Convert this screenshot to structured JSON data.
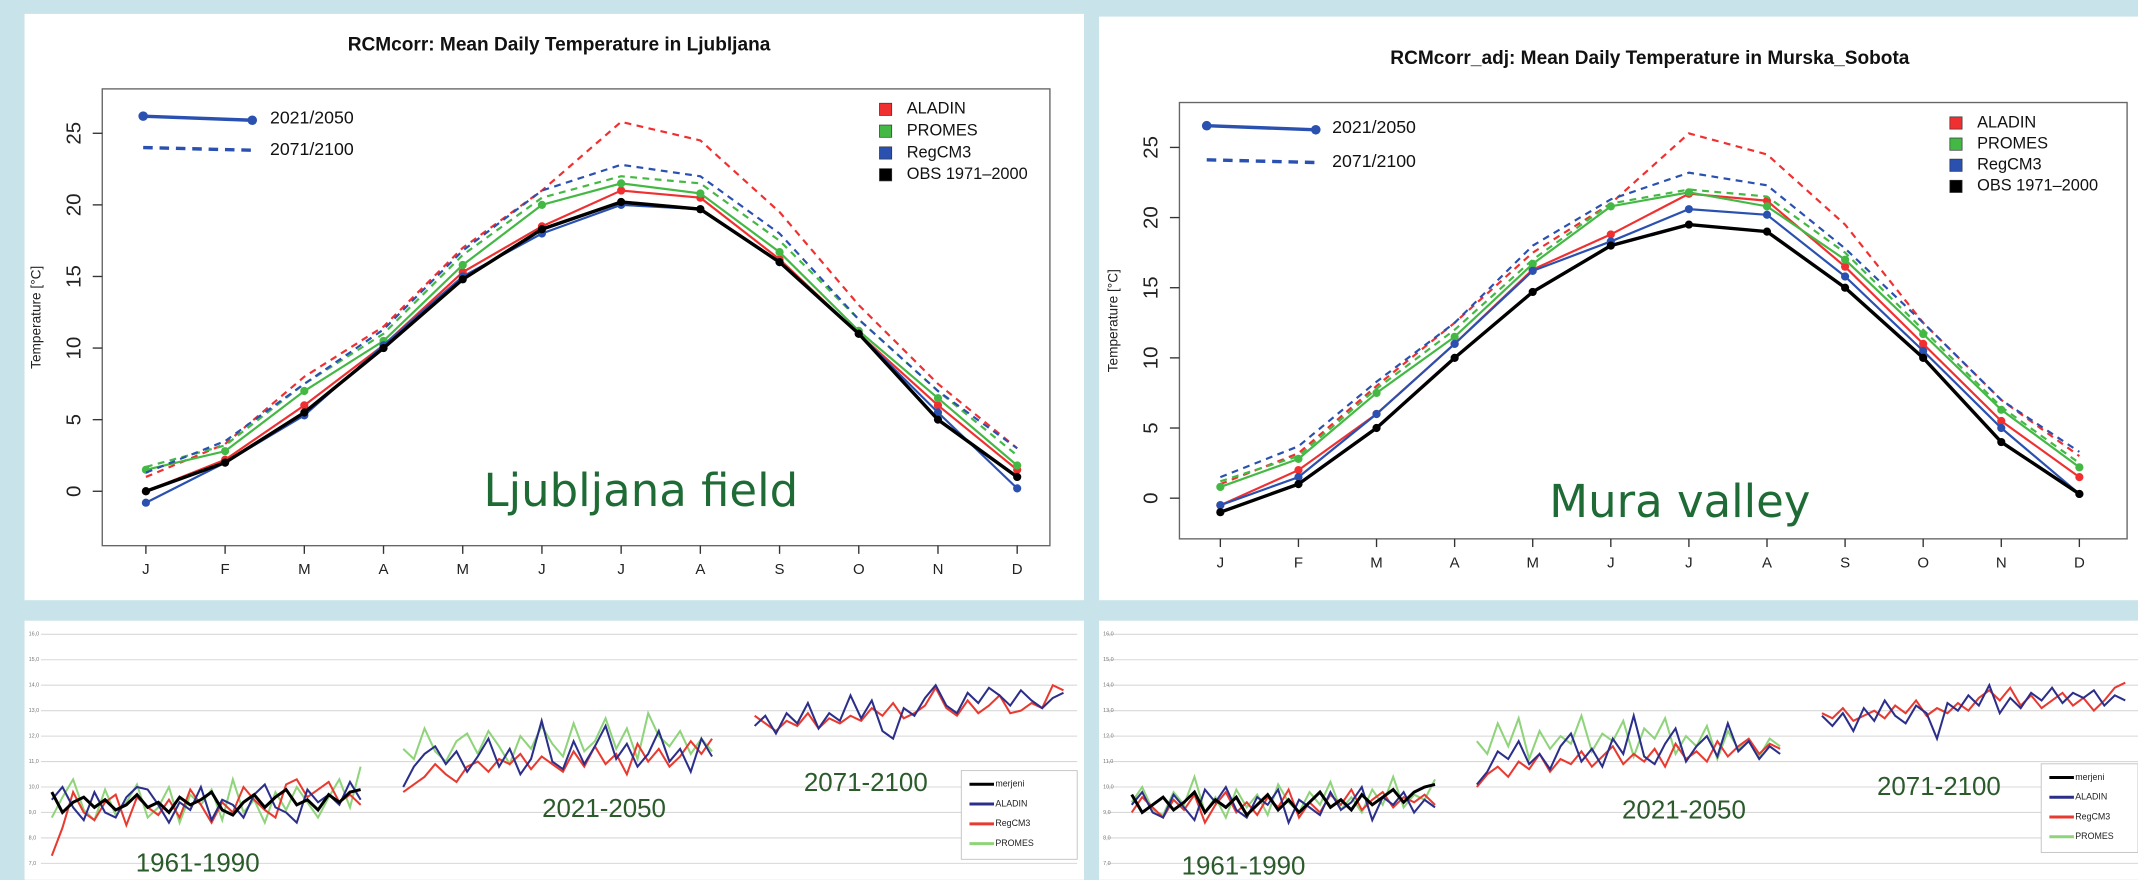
{
  "chart_data": [
    {
      "type": "line",
      "title": "RCMcorr: Mean Daily Temperature in Ljubljana",
      "ylabel": "Temperature [°C]",
      "annotation": "Ljubljana field",
      "categories": [
        "J",
        "F",
        "M",
        "A",
        "M",
        "J",
        "J",
        "A",
        "S",
        "O",
        "N",
        "D"
      ],
      "ylim": [
        -3.8,
        28.1
      ],
      "yticks": [
        0,
        5,
        10,
        15,
        20,
        25
      ],
      "periods": [
        "2021/2050",
        "2071/2100"
      ],
      "series": [
        {
          "name": "ALADIN",
          "color": "#f03030",
          "values": [
            [
              0.0,
              2.2,
              6.0,
              10.2,
              15.3,
              18.5,
              21.0,
              20.5,
              16.2,
              11.0,
              6.0,
              1.5
            ],
            [
              1.0,
              3.3,
              8.0,
              11.5,
              17.0,
              21.0,
              25.8,
              24.5,
              19.5,
              13.0,
              7.5,
              3.0
            ]
          ]
        },
        {
          "name": "PROMES",
          "color": "#44b844",
          "values": [
            [
              1.5,
              2.8,
              7.0,
              10.5,
              15.8,
              20.0,
              21.5,
              20.8,
              16.7,
              11.2,
              6.5,
              1.8
            ],
            [
              1.7,
              3.2,
              7.5,
              11.0,
              16.5,
              20.5,
              22.0,
              21.5,
              17.5,
              12.0,
              7.0,
              2.5
            ]
          ]
        },
        {
          "name": "RegCM3",
          "color": "#2a50b0",
          "values": [
            [
              -0.8,
              2.0,
              5.3,
              10.2,
              15.0,
              18.0,
              20.0,
              19.7,
              16.0,
              11.0,
              5.5,
              0.2
            ],
            [
              1.3,
              3.5,
              7.5,
              11.3,
              16.8,
              21.0,
              22.8,
              22.0,
              18.0,
              12.0,
              7.0,
              3.0
            ]
          ]
        },
        {
          "name": "OBS 1971–2000",
          "color": "#000000",
          "values": [
            [
              0.0,
              2.0,
              5.5,
              10.0,
              14.8,
              18.3,
              20.2,
              19.7,
              16.0,
              11.0,
              5.0,
              1.0
            ]
          ]
        }
      ]
    },
    {
      "type": "line",
      "title": "RCMcorr_adj: Mean Daily Temperature in Murska_Sobota",
      "ylabel": "Temperature [°C]",
      "annotation": "Mura valley",
      "categories": [
        "J",
        "F",
        "M",
        "A",
        "M",
        "J",
        "J",
        "A",
        "S",
        "O",
        "N",
        "D"
      ],
      "ylim": [
        -2.9,
        28.2
      ],
      "yticks": [
        0,
        5,
        10,
        15,
        20,
        25
      ],
      "periods": [
        "2021/2050",
        "2071/2100"
      ],
      "series": [
        {
          "name": "ALADIN",
          "color": "#f03030",
          "values": [
            [
              -0.5,
              2.0,
              6.0,
              11.0,
              16.3,
              18.8,
              21.7,
              21.2,
              16.5,
              11.0,
              5.5,
              1.5
            ],
            [
              1.0,
              3.2,
              8.0,
              12.5,
              17.5,
              21.0,
              26.0,
              24.5,
              19.5,
              12.5,
              7.0,
              3.0
            ]
          ]
        },
        {
          "name": "PROMES",
          "color": "#44b844",
          "values": [
            [
              0.8,
              2.8,
              7.5,
              11.5,
              16.7,
              20.8,
              21.8,
              20.8,
              17.0,
              11.7,
              6.3,
              2.2
            ],
            [
              1.2,
              3.0,
              7.8,
              12.0,
              17.0,
              21.0,
              22.0,
              21.5,
              17.5,
              12.0,
              6.5,
              2.5
            ]
          ]
        },
        {
          "name": "RegCM3",
          "color": "#2a50b0",
          "values": [
            [
              -0.5,
              1.5,
              6.0,
              11.0,
              16.2,
              18.3,
              20.6,
              20.2,
              15.8,
              10.5,
              5.0,
              0.3
            ],
            [
              1.5,
              3.7,
              8.3,
              12.5,
              18.0,
              21.3,
              23.2,
              22.3,
              17.8,
              12.5,
              7.0,
              3.3
            ]
          ]
        },
        {
          "name": "OBS 1971–2000",
          "color": "#000000",
          "values": [
            [
              -1.0,
              1.0,
              5.0,
              10.0,
              14.7,
              18.0,
              19.5,
              19.0,
              15.0,
              10.0,
              4.0,
              0.3
            ]
          ]
        }
      ]
    },
    {
      "type": "period_line",
      "ylim": [
        7,
        16
      ],
      "yticks": [
        {
          "value": 7,
          "label": "7,0"
        },
        {
          "value": 8,
          "label": "8,0"
        },
        {
          "value": 9,
          "label": "9,0"
        },
        {
          "value": 10,
          "label": "10,0"
        },
        {
          "value": 11,
          "label": "11,0"
        },
        {
          "value": 12,
          "label": "12,0"
        },
        {
          "value": 13,
          "label": "13,0"
        },
        {
          "value": 14,
          "label": "14,0"
        },
        {
          "value": 15,
          "label": "15,0"
        },
        {
          "value": 16,
          "label": "16,0"
        }
      ],
      "periods": [
        "1961-1990",
        "2021-2050",
        "2071-2100"
      ],
      "series": [
        {
          "name": "merjeni",
          "color": "#000000",
          "values": [
            [
              9.8,
              9.0,
              9.4,
              9.6,
              9.2,
              9.5,
              9.1,
              9.3,
              9.7,
              9.2,
              9.4,
              9.0,
              9.6,
              9.3,
              9.5,
              9.8,
              9.1,
              8.9,
              9.4,
              9.7,
              9.2,
              9.6,
              9.9,
              9.3,
              9.5,
              9.1,
              9.7,
              9.4,
              9.8,
              9.9
            ]
          ]
        },
        {
          "name": "ALADIN",
          "color": "#2b2f8a",
          "values": [
            [
              9.5,
              10.0,
              9.2,
              8.7,
              9.8,
              9.0,
              8.8,
              9.6,
              10.0,
              9.9,
              9.3,
              8.6,
              9.4,
              9.1,
              10.0,
              8.7,
              9.5,
              9.3,
              8.8,
              9.7,
              10.1,
              9.2,
              9.0,
              8.6,
              9.9,
              9.4,
              9.7,
              9.3,
              10.2,
              9.5
            ],
            [
              10.0,
              10.8,
              11.3,
              11.6,
              10.9,
              11.4,
              10.6,
              11.2,
              11.9,
              10.8,
              11.5,
              10.5,
              11.1,
              12.6,
              11.0,
              10.7,
              11.8,
              10.9,
              11.6,
              12.4,
              11.1,
              11.7,
              10.8,
              11.3,
              12.2,
              11.0,
              11.5,
              10.6,
              11.9,
              11.2
            ],
            [
              12.4,
              12.8,
              12.1,
              12.9,
              12.5,
              13.3,
              12.3,
              12.9,
              12.6,
              13.6,
              12.7,
              13.4,
              12.2,
              11.9,
              13.1,
              12.8,
              13.5,
              14.0,
              13.2,
              12.9,
              13.7,
              13.3,
              13.9,
              13.6,
              13.2,
              13.8,
              13.4,
              13.1,
              13.5,
              13.7
            ]
          ]
        },
        {
          "name": "RegCM3",
          "color": "#e83a30",
          "values": [
            [
              7.3,
              8.4,
              9.8,
              9.0,
              8.7,
              9.4,
              9.7,
              8.5,
              9.6,
              9.2,
              8.9,
              9.5,
              8.8,
              9.9,
              9.3,
              8.6,
              9.4,
              9.0,
              10.0,
              9.5,
              9.1,
              8.8,
              10.1,
              10.3,
              9.6,
              9.9,
              10.2,
              9.4,
              9.7,
              9.3
            ],
            [
              9.8,
              10.1,
              10.4,
              10.9,
              10.5,
              10.2,
              10.8,
              11.0,
              10.6,
              11.1,
              10.9,
              11.3,
              10.7,
              11.2,
              10.9,
              10.6,
              11.4,
              10.8,
              11.6,
              10.9,
              11.3,
              10.5,
              11.7,
              11.0,
              11.5,
              10.8,
              11.2,
              11.8,
              11.3,
              11.9
            ],
            [
              12.8,
              12.5,
              12.2,
              12.6,
              12.4,
              12.9,
              12.3,
              12.7,
              12.5,
              12.8,
              12.6,
              13.1,
              12.8,
              13.3,
              12.7,
              12.9,
              13.2,
              13.9,
              13.1,
              12.8,
              13.4,
              12.9,
              13.2,
              13.6,
              12.9,
              13.0,
              13.3,
              13.1,
              14.0,
              13.8
            ]
          ]
        },
        {
          "name": "PROMES",
          "color": "#8fd47a",
          "values": [
            [
              8.8,
              9.6,
              10.3,
              9.1,
              8.7,
              9.9,
              8.9,
              9.4,
              10.1,
              8.8,
              9.2,
              10.0,
              8.6,
              9.7,
              9.3,
              9.9,
              8.7,
              10.3,
              9.0,
              9.5,
              8.6,
              9.8,
              9.1,
              10.0,
              9.4,
              8.8,
              9.6,
              10.3,
              9.2,
              10.8
            ],
            [
              11.5,
              11.1,
              12.3,
              11.4,
              11.0,
              11.8,
              12.1,
              11.3,
              12.2,
              11.6,
              10.9,
              12.0,
              11.5,
              12.4,
              11.7,
              11.2,
              12.5,
              11.4,
              11.8,
              12.7,
              11.5,
              12.3,
              11.1,
              12.9,
              12.0,
              11.6,
              12.2,
              11.3,
              11.9,
              11.4
            ]
          ]
        }
      ]
    },
    {
      "type": "period_line",
      "ylim": [
        7,
        16
      ],
      "yticks": [
        {
          "value": 7,
          "label": "7,0"
        },
        {
          "value": 8,
          "label": "8,0"
        },
        {
          "value": 9,
          "label": "9,0"
        },
        {
          "value": 10,
          "label": "10,0"
        },
        {
          "value": 11,
          "label": "11,0"
        },
        {
          "value": 12,
          "label": "12,0"
        },
        {
          "value": 13,
          "label": "13,0"
        },
        {
          "value": 14,
          "label": "14,0"
        },
        {
          "value": 15,
          "label": "15,0"
        },
        {
          "value": 16,
          "label": "16,0"
        }
      ],
      "periods": [
        "1961-1990",
        "2021-2050",
        "2071-2100"
      ],
      "series": [
        {
          "name": "merjeni",
          "color": "#000000",
          "values": [
            [
              9.7,
              9.0,
              9.3,
              9.6,
              9.1,
              9.4,
              9.8,
              9.0,
              9.5,
              9.2,
              9.6,
              8.9,
              9.3,
              9.7,
              9.1,
              9.5,
              9.0,
              9.4,
              9.8,
              9.2,
              9.5,
              9.1,
              9.7,
              9.3,
              9.6,
              9.9,
              9.4,
              9.8,
              10.0,
              10.1
            ]
          ]
        },
        {
          "name": "ALADIN",
          "color": "#2b2f8a",
          "values": [
            [
              9.3,
              9.8,
              9.0,
              8.8,
              9.7,
              9.2,
              8.7,
              9.9,
              9.4,
              10.0,
              9.1,
              8.8,
              9.6,
              9.3,
              9.9,
              8.6,
              9.5,
              9.2,
              8.9,
              9.8,
              9.1,
              9.4,
              10.0,
              8.7,
              9.6,
              9.3,
              9.8,
              9.0,
              9.5,
              9.2
            ],
            [
              10.1,
              10.6,
              11.4,
              11.1,
              11.8,
              10.9,
              11.3,
              10.7,
              11.6,
              12.1,
              11.0,
              11.5,
              10.8,
              11.9,
              11.3,
              12.8,
              11.2,
              10.9,
              11.7,
              12.3,
              11.0,
              11.6,
              12.0,
              11.2,
              12.5,
              11.4,
              11.8,
              11.1,
              11.6,
              11.3
            ],
            [
              12.8,
              12.4,
              12.9,
              12.2,
              13.1,
              12.6,
              13.4,
              12.8,
              12.5,
              13.2,
              12.9,
              11.9,
              13.3,
              13.0,
              13.6,
              13.2,
              14.0,
              12.9,
              13.5,
              13.1,
              13.7,
              13.4,
              13.9,
              13.3,
              13.7,
              13.5,
              13.8,
              13.2,
              13.6,
              13.4
            ]
          ]
        },
        {
          "name": "RegCM3",
          "color": "#e83a30",
          "values": [
            [
              9.0,
              9.6,
              9.2,
              8.8,
              9.5,
              9.1,
              9.7,
              8.6,
              9.3,
              9.8,
              9.0,
              9.4,
              8.9,
              9.6,
              9.2,
              9.9,
              8.8,
              9.4,
              9.0,
              9.7,
              9.3,
              9.9,
              9.1,
              9.5,
              9.8,
              9.2,
              9.6,
              9.4,
              9.7,
              9.3
            ],
            [
              10.0,
              10.5,
              10.8,
              10.4,
              11.0,
              10.7,
              11.3,
              10.6,
              11.1,
              10.9,
              11.4,
              10.8,
              11.2,
              11.6,
              10.9,
              11.3,
              11.0,
              11.5,
              10.8,
              11.7,
              11.1,
              11.4,
              11.0,
              11.8,
              11.2,
              11.6,
              11.9,
              11.3,
              11.7,
              11.5
            ],
            [
              12.9,
              12.7,
              13.1,
              12.6,
              12.8,
              13.0,
              12.7,
              13.2,
              12.9,
              13.4,
              12.8,
              13.1,
              12.9,
              13.3,
              13.0,
              13.5,
              13.8,
              13.4,
              13.9,
              13.2,
              13.6,
              13.1,
              13.4,
              13.7,
              13.2,
              13.5,
              13.0,
              13.4,
              13.9,
              14.1
            ]
          ]
        },
        {
          "name": "PROMES",
          "color": "#8fd47a",
          "values": [
            [
              9.4,
              10.0,
              9.1,
              8.9,
              9.8,
              9.3,
              10.4,
              9.0,
              9.6,
              8.8,
              9.9,
              9.2,
              9.7,
              8.9,
              10.1,
              9.4,
              9.0,
              9.8,
              9.3,
              10.2,
              9.1,
              9.6,
              9.0,
              9.9,
              9.3,
              10.4,
              9.2,
              9.7,
              9.5,
              10.3
            ],
            [
              11.8,
              11.3,
              12.5,
              11.6,
              12.7,
              11.1,
              12.2,
              11.5,
              12.0,
              11.7,
              12.8,
              11.4,
              12.1,
              11.8,
              12.6,
              11.2,
              12.3,
              11.9,
              12.7,
              11.3,
              12.0,
              11.6,
              12.4,
              11.1,
              12.2,
              11.5,
              11.8,
              11.2,
              11.9,
              11.6
            ]
          ]
        }
      ]
    }
  ]
}
